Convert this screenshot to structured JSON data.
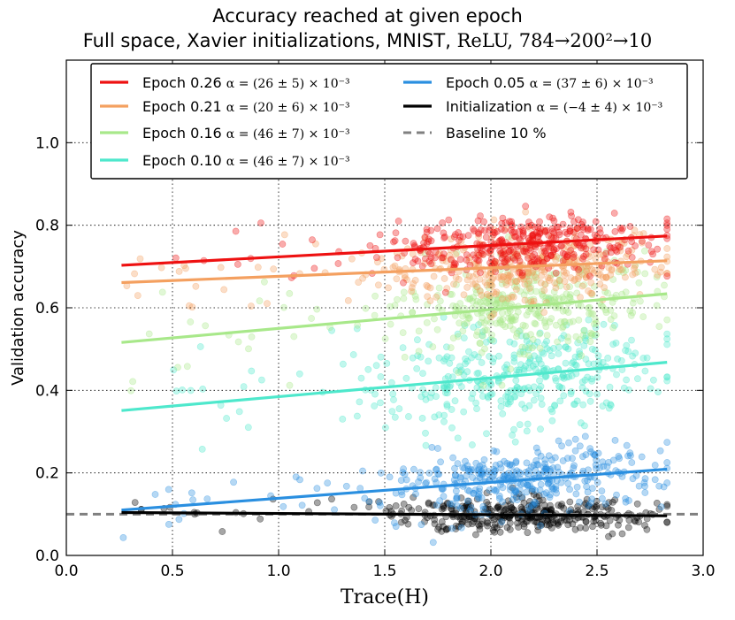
{
  "chart_data": {
    "type": "scatter",
    "title": "Accuracy reached at given epoch",
    "subtitle_text": "Full space, Xavier initializations, MNIST,",
    "subtitle_arch": "ReLU, 784→200²→10",
    "xlabel": "Trace(H)",
    "ylabel": "Validation accuracy",
    "xlim": [
      0.0,
      3.0
    ],
    "ylim": [
      0.0,
      1.2
    ],
    "xticks": [
      "0.0",
      "0.5",
      "1.0",
      "1.5",
      "2.0",
      "2.5",
      "3.0"
    ],
    "yticks": [
      "0.0",
      "0.2",
      "0.4",
      "0.6",
      "0.8",
      "1.0"
    ],
    "grid": true,
    "legend_position": "top",
    "series": [
      {
        "name": "Epoch 0.26",
        "alpha_text": "α = (26 ± 5) × 10⁻³",
        "color": "#ee1111",
        "fit": {
          "x": [
            0.26,
            2.83
          ],
          "y": [
            0.703,
            0.774
          ]
        },
        "center": 0.76,
        "spread": 0.035
      },
      {
        "name": "Epoch 0.21",
        "alpha_text": "α = (20 ± 6) × 10⁻³",
        "color": "#f4a060",
        "fit": {
          "x": [
            0.26,
            2.83
          ],
          "y": [
            0.661,
            0.714
          ]
        },
        "center": 0.7,
        "spread": 0.04
      },
      {
        "name": "Epoch 0.16",
        "alpha_text": "α = (46 ± 7) × 10⁻³",
        "color": "#a8e88a",
        "fit": {
          "x": [
            0.26,
            2.83
          ],
          "y": [
            0.516,
            0.634
          ]
        },
        "center": 0.6,
        "spread": 0.055
      },
      {
        "name": "Epoch 0.10",
        "alpha_text": "α = (46 ± 7) × 10⁻³",
        "color": "#4ee8cc",
        "fit": {
          "x": [
            0.26,
            2.83
          ],
          "y": [
            0.351,
            0.468
          ]
        },
        "center": 0.45,
        "spread": 0.06
      },
      {
        "name": "Epoch 0.05",
        "alpha_text": "α = (37 ± 6) × 10⁻³",
        "color": "#2a8fe0",
        "fit": {
          "x": [
            0.26,
            2.83
          ],
          "y": [
            0.11,
            0.209
          ]
        },
        "center": 0.19,
        "spread": 0.04
      },
      {
        "name": "Initialization",
        "alpha_text": "α = (−4 ± 4) × 10⁻³",
        "color": "#000000",
        "fit": {
          "x": [
            0.26,
            2.83
          ],
          "y": [
            0.104,
            0.096
          ]
        },
        "center": 0.1,
        "spread": 0.02
      }
    ],
    "baseline": {
      "name": "Baseline 10 %",
      "y": 0.1,
      "color": "#808080"
    },
    "scatter_x_cluster": {
      "center": 2.15,
      "spread": 0.3,
      "points_per_series": 380
    }
  }
}
